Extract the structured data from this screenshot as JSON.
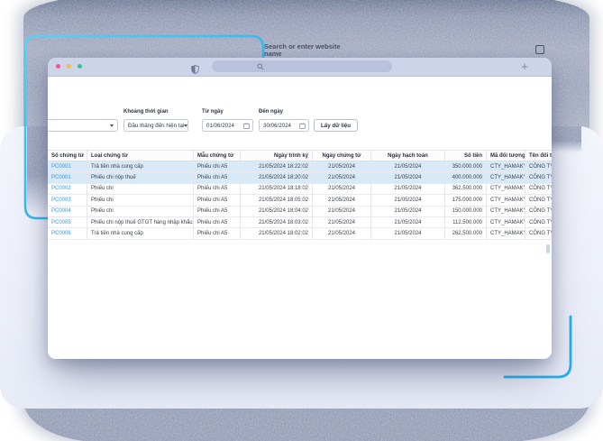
{
  "background": {
    "search_hint": "Search or enter website name"
  },
  "browser": {
    "new_tab_label": "+"
  },
  "filters": {
    "period": {
      "label": "Khoảng thời gian",
      "value": "Đầu tháng đến hiện tại"
    },
    "from_date": {
      "label": "Từ ngày",
      "value": "01/06/2024"
    },
    "to_date": {
      "label": "Đến ngày",
      "value": "30/06/2024"
    },
    "fetch_button_label": "Lấy dữ liệu"
  },
  "table": {
    "columns": [
      {
        "label": "Số chứng từ",
        "align": "left"
      },
      {
        "label": "Loại chứng từ",
        "align": "left"
      },
      {
        "label": "Mẫu chứng từ",
        "align": "left"
      },
      {
        "label": "Ngày trình ký",
        "align": "right"
      },
      {
        "label": "Ngày chứng từ",
        "align": "center"
      },
      {
        "label": "Ngày hạch toán",
        "align": "center"
      },
      {
        "label": "Số tiền",
        "align": "right"
      },
      {
        "label": "Mã đối tượng",
        "align": "left"
      },
      {
        "label": "Tên đối tượng",
        "align": "left"
      }
    ],
    "rows": [
      [
        "PC0001",
        "Trả tiền nhà cung cấp",
        "Phiếu chi A5",
        "21/05/2024 18:22:02",
        "21/05/2024",
        "21/05/2024",
        "350.000.000",
        "CTY_HAMAKYU",
        "CÔNG TY"
      ],
      [
        "PC0001",
        "Phiếu chi nộp thuế",
        "Phiếu chi A5",
        "21/05/2024 18:20:02",
        "21/05/2024",
        "21/05/2024",
        "400.000.000",
        "CTY_HAMAKYU",
        "CÔNG TY"
      ],
      [
        "PC0002",
        "Phiếu chi",
        "Phiếu chi A5",
        "21/05/2024 18:18:02",
        "21/05/2024",
        "21/05/2024",
        "362.500.000",
        "CTY_HAMAKYU",
        "CÔNG TY"
      ],
      [
        "PC0003",
        "Phiếu chi",
        "Phiếu chi A5",
        "21/05/2024 18:05:02",
        "21/05/2024",
        "21/05/2024",
        "175.000.000",
        "CTY_HAMAKYU",
        "CÔNG TY"
      ],
      [
        "PC0004",
        "Phiếu chi",
        "Phiếu chi A5",
        "21/05/2024 18:04:02",
        "21/05/2024",
        "21/05/2024",
        "150.000.000",
        "CTY_HAMAKYU",
        "CÔNG TY"
      ],
      [
        "PC0005",
        "Phiếu chi nộp thuế GTGT hàng nhập khẩu",
        "Phiếu chi A5",
        "21/05/2024 18:03:02",
        "21/05/2024",
        "21/05/2024",
        "112.500.000",
        "CTY_HAMAKYU",
        "CÔNG TY"
      ],
      [
        "PC0006",
        "Trả tiền nhà cung cấp",
        "Phiếu chi A5",
        "21/05/2024 18:02:02",
        "21/05/2024",
        "21/05/2024",
        "262.500.000",
        "CTY_HAMAKYU",
        "CÔNG TY"
      ]
    ],
    "highlighted_rows": [
      0,
      1
    ]
  },
  "colors": {
    "accent_cyan": "#22b2f0",
    "toolbar_bg": "#cdd3e9",
    "row_highlight": "#d8e9f8",
    "link_blue": "#2e9ae5",
    "traffic_close": "#f2578c",
    "traffic_min": "#f5bd4b",
    "traffic_max": "#32c98c"
  }
}
